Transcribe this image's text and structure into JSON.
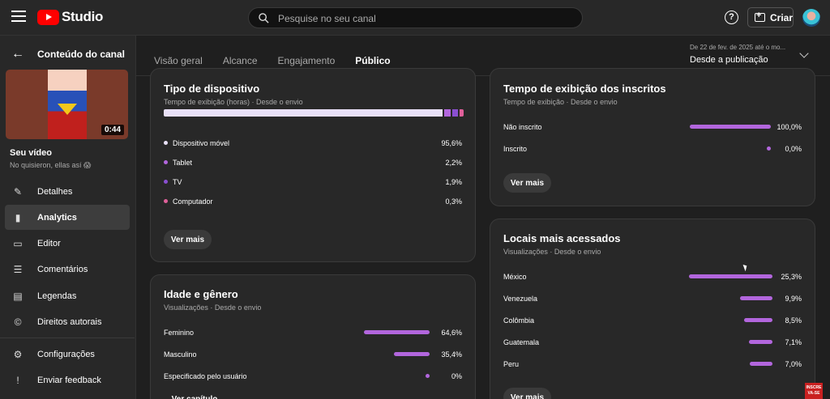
{
  "header": {
    "logo_text": "Studio",
    "search_placeholder": "Pesquise no seu canal",
    "create_label": "Criar"
  },
  "sidebar": {
    "back_label": "Conteúdo do canal",
    "thumbnail_duration": "0:44",
    "video_title": "Seu vídeo",
    "video_subtitle": "No quisieron, ellas así 😱",
    "items": [
      {
        "label": "Detalhes",
        "icon": "pencil-icon"
      },
      {
        "label": "Analytics",
        "icon": "analytics-icon",
        "active": true
      },
      {
        "label": "Editor",
        "icon": "film-icon"
      },
      {
        "label": "Comentários",
        "icon": "comment-icon"
      },
      {
        "label": "Legendas",
        "icon": "subtitles-icon"
      },
      {
        "label": "Direitos autorais",
        "icon": "copyright-icon"
      }
    ],
    "footer_items": [
      {
        "label": "Configurações",
        "icon": "gear-icon"
      },
      {
        "label": "Enviar feedback",
        "icon": "feedback-icon"
      }
    ]
  },
  "tabs": [
    "Visão geral",
    "Alcance",
    "Engajamento",
    "Público"
  ],
  "active_tab": "Público",
  "date_range": {
    "range": "De 22 de fev. de 2025 até o mo...",
    "label": "Desde a publicação"
  },
  "device_card": {
    "title": "Tipo de dispositivo",
    "subtitle": "Tempo de exibição (horas) · Desde o envio",
    "rows": [
      {
        "label": "Dispositivo móvel",
        "value": "95,6%",
        "share": 95.6,
        "color": "#e8e0f7"
      },
      {
        "label": "Tablet",
        "value": "2,2%",
        "share": 2.2,
        "color": "#b266dd"
      },
      {
        "label": "TV",
        "value": "1,9%",
        "share": 1.9,
        "color": "#8a4fd1"
      },
      {
        "label": "Computador",
        "value": "0,3%",
        "share": 0.3,
        "color": "#e0609a"
      }
    ],
    "more_label": "Ver mais"
  },
  "subscribers_card": {
    "title": "Tempo de exibição dos inscritos",
    "subtitle": "Tempo de exibição · Desde o envio",
    "rows": [
      {
        "label": "Não inscrito",
        "value": "100,0%",
        "share": 100.0
      },
      {
        "label": "Inscrito",
        "value": "0,0%",
        "share": 0.0
      }
    ],
    "more_label": "Ver mais"
  },
  "age_gender_card": {
    "title": "Idade e gênero",
    "subtitle": "Visualizações · Desde o envio",
    "rows": [
      {
        "label": "Feminino",
        "value": "64,6%",
        "share": 64.6
      },
      {
        "label": "Masculino",
        "value": "35,4%",
        "share": 35.4
      },
      {
        "label": "Especificado pelo usuário",
        "value": "0%",
        "share": 0
      }
    ],
    "more_label": "Ver capítulo"
  },
  "locations_card": {
    "title": "Locais mais acessados",
    "subtitle": "Visualizações · Desde o envio",
    "rows": [
      {
        "label": "México",
        "value": "25,3%",
        "share": 25.3
      },
      {
        "label": "Venezuela",
        "value": "9,9%",
        "share": 9.9
      },
      {
        "label": "Colômbia",
        "value": "8,5%",
        "share": 8.5
      },
      {
        "label": "Guatemala",
        "value": "7,1%",
        "share": 7.1
      },
      {
        "label": "Peru",
        "value": "7,0%",
        "share": 7.0
      }
    ],
    "more_label": "Ver mais"
  },
  "colors": {
    "accent": "#b266dd",
    "card": "#282828",
    "background": "#1f1f1f"
  }
}
